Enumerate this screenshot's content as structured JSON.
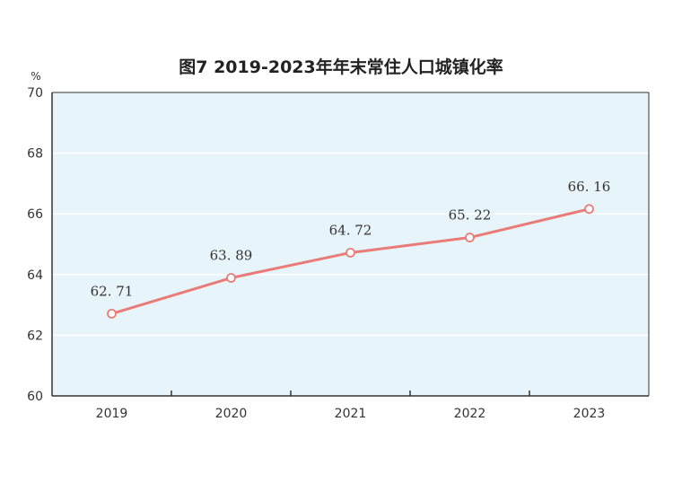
{
  "title": "图7   2019-2023年年末常住人口城镇化率",
  "chart_data": {
    "type": "line",
    "title": "图7   2019-2023年年末常住人口城镇化率",
    "ylabel": "%",
    "xlabel": "",
    "categories": [
      "2019",
      "2020",
      "2021",
      "2022",
      "2023"
    ],
    "series": [
      {
        "values": [
          62.71,
          63.89,
          64.72,
          65.22,
          66.16
        ],
        "labels": [
          "62. 71",
          "63. 89",
          "64. 72",
          "65. 22",
          "66. 16"
        ]
      }
    ],
    "ylim": [
      60,
      70
    ],
    "yticks": [
      "60",
      "62",
      "64",
      "66",
      "68",
      "70"
    ],
    "grid": true,
    "legend": "none",
    "colors": {
      "plot_bg": "#e7f4f9",
      "line": "#e97b78",
      "marker_fill": "#ffffff",
      "grid": "#ffffff",
      "axis": "#333333"
    }
  }
}
